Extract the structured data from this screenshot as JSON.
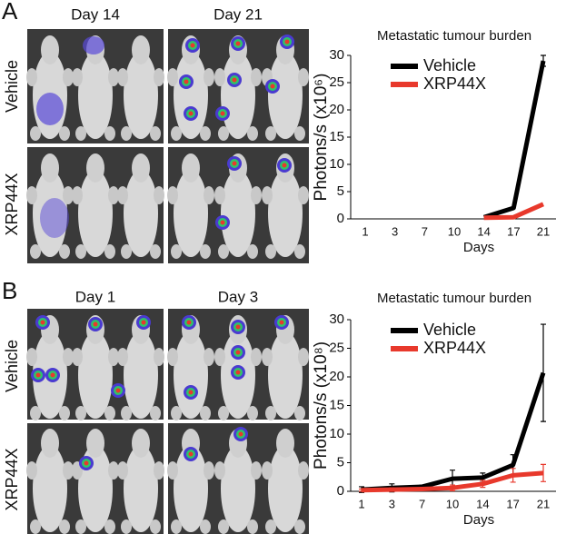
{
  "panels": [
    {
      "label": "A",
      "image_columns": [
        "Day 14",
        "Day 21"
      ],
      "image_rows": [
        "Vehicle",
        "XRP44X"
      ]
    },
    {
      "label": "B",
      "image_columns": [
        "Day 1",
        "Day 3"
      ],
      "image_rows": [
        "Vehicle",
        "XRP44X"
      ]
    }
  ],
  "chart_data": [
    {
      "type": "line",
      "title": "Metastatic tumour burden",
      "x_label": "Days",
      "y_label": "Photons/s (x10⁶)",
      "categories": [
        "1",
        "3",
        "7",
        "10",
        "14",
        "17",
        "21"
      ],
      "series": [
        {
          "name": "Vehicle",
          "color": "#000000",
          "values": [
            null,
            null,
            null,
            null,
            0.3,
            2,
            29
          ],
          "errors": [
            null,
            null,
            null,
            null,
            null,
            null,
            1
          ]
        },
        {
          "name": "XRP44X",
          "color": "#e8392c",
          "values": [
            null,
            null,
            null,
            null,
            0.2,
            0.3,
            2.7
          ],
          "errors": [
            null,
            null,
            null,
            null,
            null,
            null,
            null
          ]
        }
      ],
      "ylim": [
        0,
        30
      ],
      "yticks": [
        0,
        5,
        10,
        15,
        20,
        25,
        30
      ]
    },
    {
      "type": "line",
      "title": "Metastatic tumour burden",
      "x_label": "Days",
      "y_label": "Photons/s (x10⁸)",
      "categories": [
        "1",
        "3",
        "7",
        "10",
        "14",
        "17",
        "21"
      ],
      "series": [
        {
          "name": "Vehicle",
          "color": "#000000",
          "values": [
            0.3,
            0.6,
            0.8,
            2.2,
            2.4,
            4.6,
            20.7
          ],
          "errors": [
            0.5,
            0.7,
            0.3,
            1.5,
            0.8,
            1.8,
            8.5
          ]
        },
        {
          "name": "XRP44X",
          "color": "#e8392c",
          "values": [
            0.2,
            0.3,
            0.4,
            0.6,
            1.3,
            2.8,
            3.2
          ],
          "errors": [
            0.2,
            0.3,
            0.2,
            0.5,
            0.6,
            1.2,
            1.5
          ]
        }
      ],
      "ylim": [
        0,
        30
      ],
      "yticks": [
        0,
        5,
        10,
        15,
        20,
        25,
        30
      ]
    }
  ]
}
